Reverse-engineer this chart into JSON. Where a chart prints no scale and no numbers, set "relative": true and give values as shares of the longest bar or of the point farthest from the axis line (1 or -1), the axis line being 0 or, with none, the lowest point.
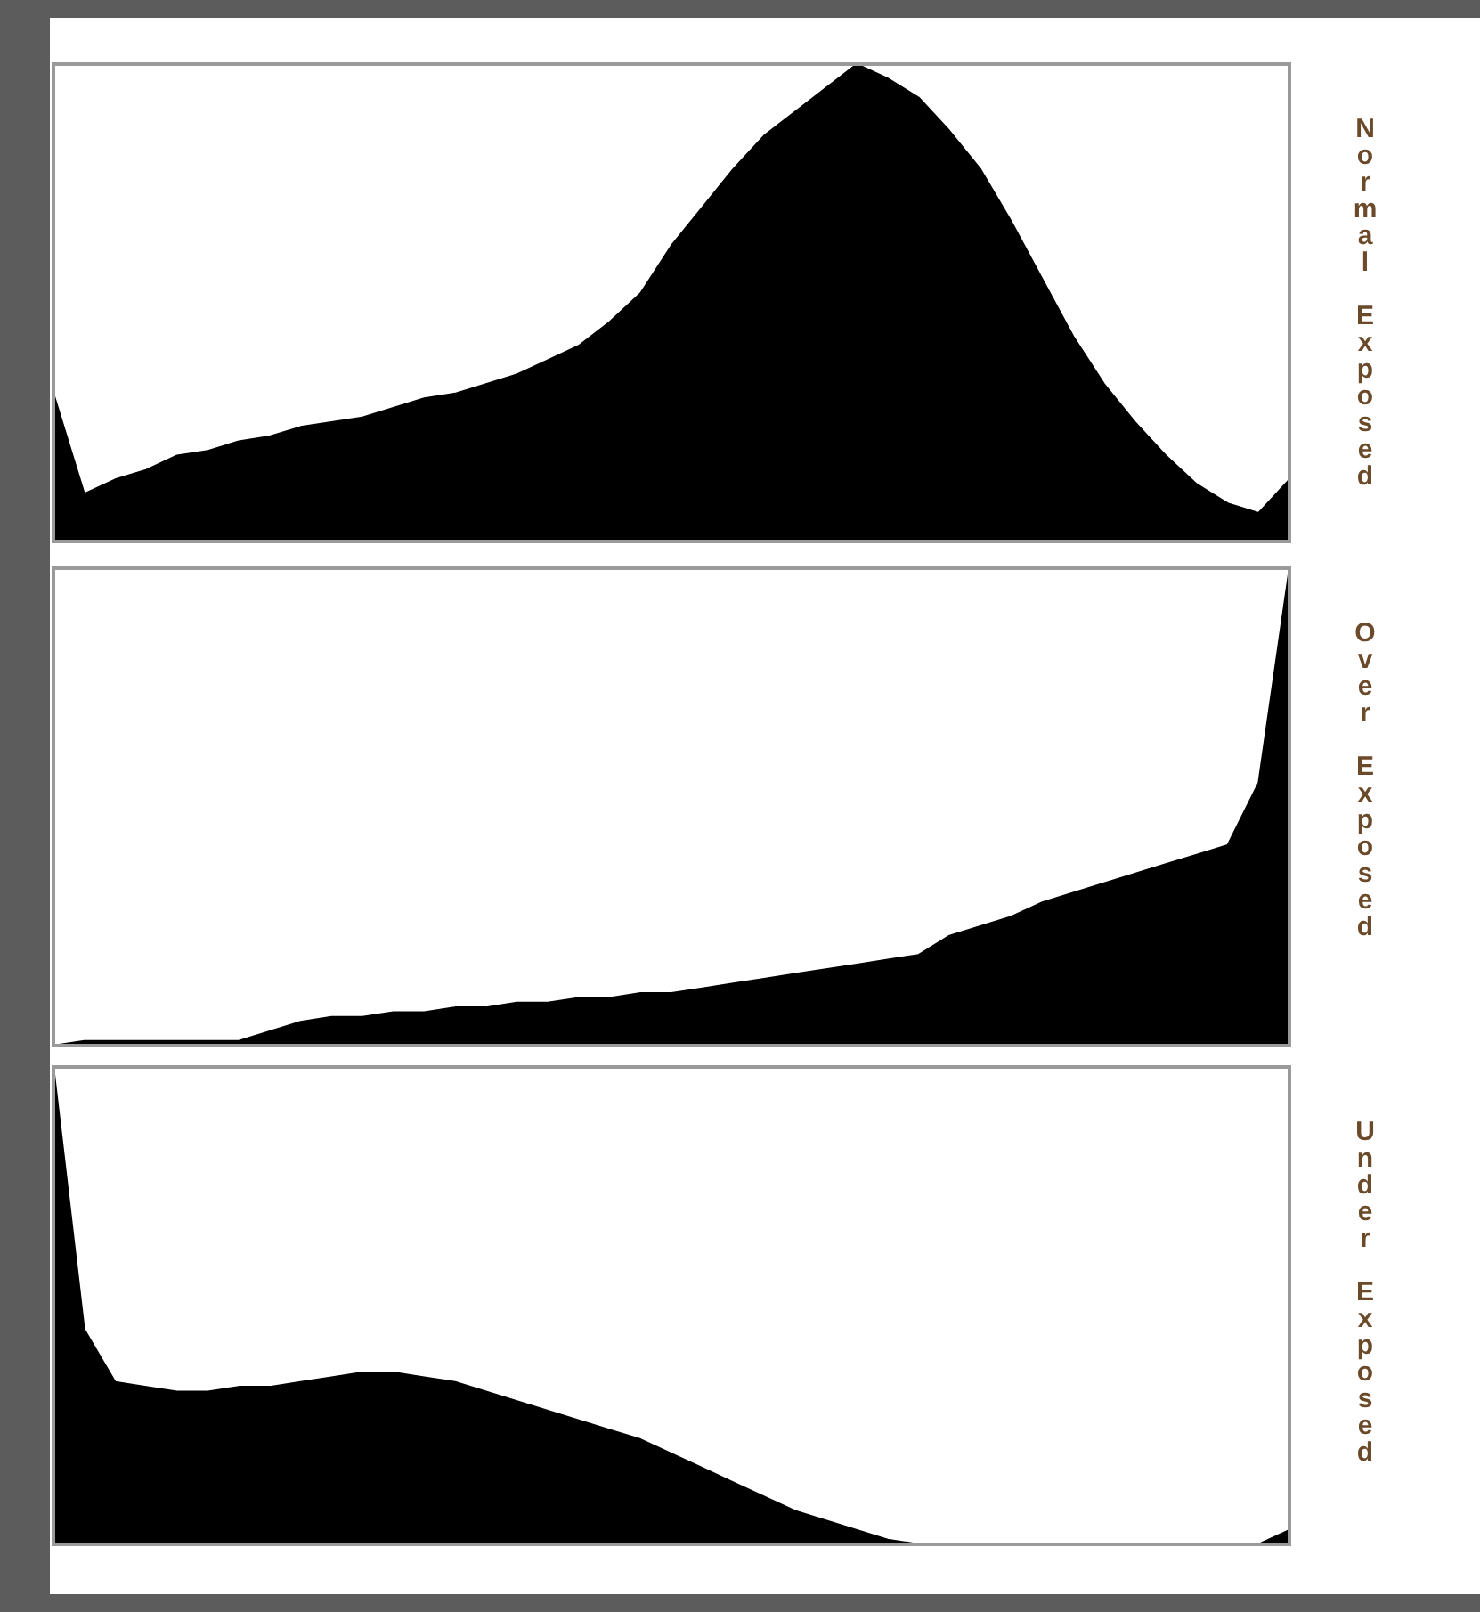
{
  "chart_data": [
    {
      "type": "area",
      "relative": true,
      "color": "#000000",
      "y2label": "Normal Exposed",
      "categories": [
        null,
        null,
        null,
        null,
        null,
        null,
        null,
        null,
        null,
        null,
        null,
        null,
        null,
        null,
        null,
        null,
        null,
        null,
        null,
        null,
        null,
        null,
        null,
        null,
        null,
        null,
        null,
        null,
        null,
        null,
        null,
        null,
        null,
        null,
        null,
        null,
        null,
        null,
        null,
        null,
        null
      ],
      "values": [
        0.31,
        0.1,
        0.13,
        0.15,
        0.18,
        0.19,
        0.21,
        0.22,
        0.24,
        0.25,
        0.26,
        0.28,
        0.3,
        0.31,
        0.33,
        0.35,
        0.38,
        0.41,
        0.46,
        0.52,
        0.62,
        0.7,
        0.78,
        0.85,
        0.9,
        0.95,
        1.0,
        0.97,
        0.93,
        0.86,
        0.78,
        0.67,
        0.55,
        0.43,
        0.33,
        0.25,
        0.18,
        0.12,
        0.08,
        0.06,
        0.13
      ]
    },
    {
      "type": "area",
      "relative": true,
      "color": "#000000",
      "y2label": "Over Exposed",
      "categories": [
        null,
        null,
        null,
        null,
        null,
        null,
        null,
        null,
        null,
        null,
        null,
        null,
        null,
        null,
        null,
        null,
        null,
        null,
        null,
        null,
        null,
        null,
        null,
        null,
        null,
        null,
        null,
        null,
        null,
        null,
        null,
        null,
        null,
        null,
        null,
        null,
        null,
        null,
        null,
        null,
        null
      ],
      "values": [
        0,
        0.01,
        0.01,
        0.01,
        0.01,
        0.01,
        0.01,
        0.03,
        0.05,
        0.06,
        0.06,
        0.07,
        0.07,
        0.08,
        0.08,
        0.09,
        0.09,
        0.1,
        0.1,
        0.11,
        0.11,
        0.12,
        0.13,
        0.14,
        0.15,
        0.16,
        0.17,
        0.18,
        0.19,
        0.23,
        0.25,
        0.27,
        0.3,
        0.32,
        0.34,
        0.36,
        0.38,
        0.4,
        0.42,
        0.55,
        1.0
      ]
    },
    {
      "type": "area",
      "relative": true,
      "color": "#000000",
      "y2label": "Under Exposed",
      "categories": [
        null,
        null,
        null,
        null,
        null,
        null,
        null,
        null,
        null,
        null,
        null,
        null,
        null,
        null,
        null,
        null,
        null,
        null,
        null,
        null,
        null,
        null,
        null,
        null,
        null,
        null,
        null,
        null,
        null,
        null,
        null,
        null,
        null,
        null,
        null,
        null,
        null,
        null,
        null,
        null,
        null
      ],
      "values": [
        1.0,
        0.45,
        0.34,
        0.33,
        0.32,
        0.32,
        0.33,
        0.33,
        0.34,
        0.35,
        0.36,
        0.36,
        0.35,
        0.34,
        0.32,
        0.3,
        0.28,
        0.26,
        0.24,
        0.22,
        0.19,
        0.16,
        0.13,
        0.1,
        0.07,
        0.05,
        0.03,
        0.01,
        0,
        0,
        0,
        0,
        0,
        0,
        0,
        0,
        0,
        0,
        0,
        0,
        0.03
      ]
    }
  ]
}
